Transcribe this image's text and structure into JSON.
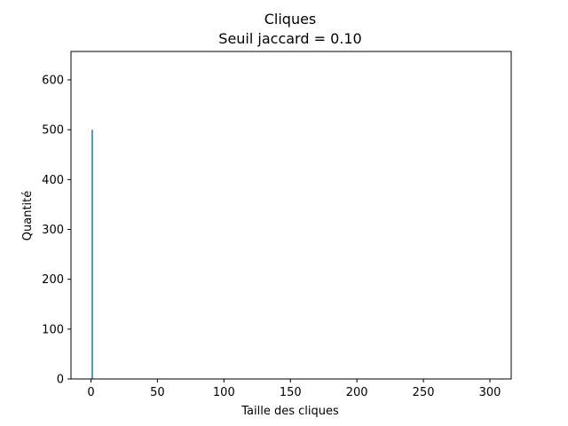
{
  "chart_data": {
    "type": "bar",
    "title": "Cliques",
    "subtitle": "Seuil jaccard = 0.10",
    "xlabel": "Taille des cliques",
    "ylabel": "Quantité",
    "xlim": [
      -15,
      316
    ],
    "ylim": [
      0,
      657
    ],
    "xticks": [
      0,
      50,
      100,
      150,
      200,
      250,
      300
    ],
    "yticks": [
      0,
      100,
      200,
      300,
      400,
      500,
      600
    ],
    "bars": [
      {
        "x": 1,
        "value": 500
      }
    ],
    "bar_color": "#1f77b4",
    "grid": false
  }
}
